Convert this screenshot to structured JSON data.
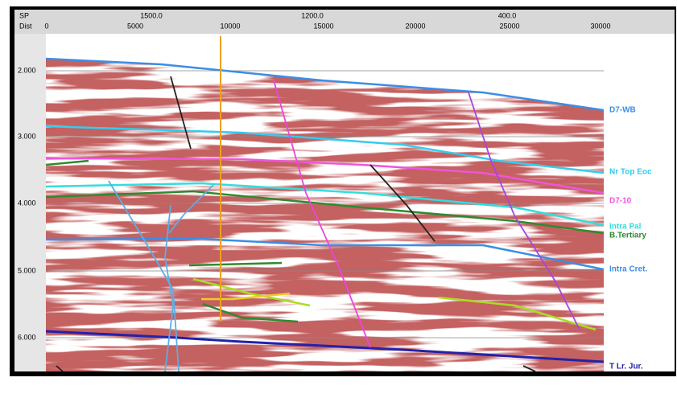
{
  "top_axis": {
    "sp_label": "SP",
    "dist_label": "Dist",
    "sp_ticks": [
      "1500.0",
      "1200.0",
      "400.0"
    ],
    "dist_ticks": [
      "0",
      "5000",
      "10000",
      "15000",
      "20000",
      "25000",
      "30000"
    ]
  },
  "time_axis": {
    "labels": [
      "2.000",
      "3.000",
      "4.000",
      "5.000",
      "6.000"
    ]
  },
  "horizons": [
    {
      "label": "D7-WB"
    },
    {
      "label": "Nr Top Eoc"
    },
    {
      "label": "D7-10"
    },
    {
      "label": "Intra Pal"
    },
    {
      "label": "B.Tertiary"
    },
    {
      "label": "Intra Cret."
    },
    {
      "label": "T Lr. Jur."
    }
  ]
}
